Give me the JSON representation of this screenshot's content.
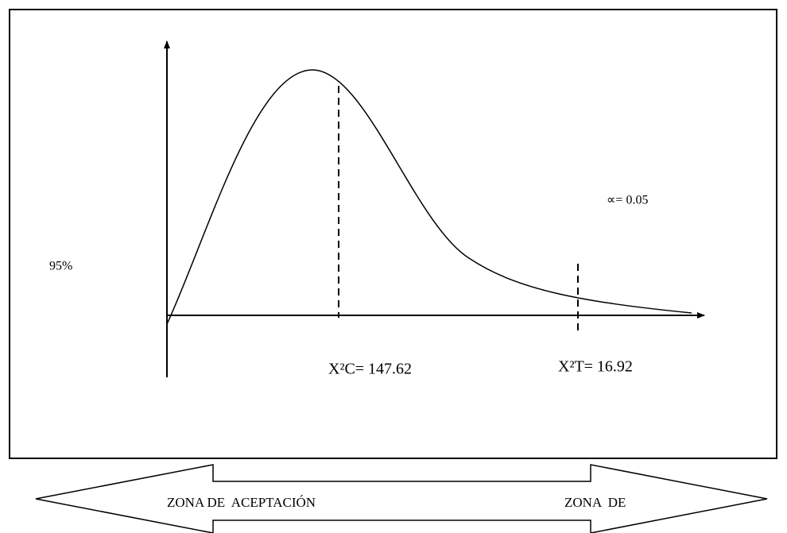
{
  "labels": {
    "alpha": "∝= 0.05",
    "confidence": "95%",
    "chi_calc": "X²C= 147.62",
    "chi_table": "X²T= 16.92"
  },
  "zones": {
    "acceptance": "ZONA DE  ACEPTACIÓN",
    "rejection": "ZONA  DE"
  }
}
